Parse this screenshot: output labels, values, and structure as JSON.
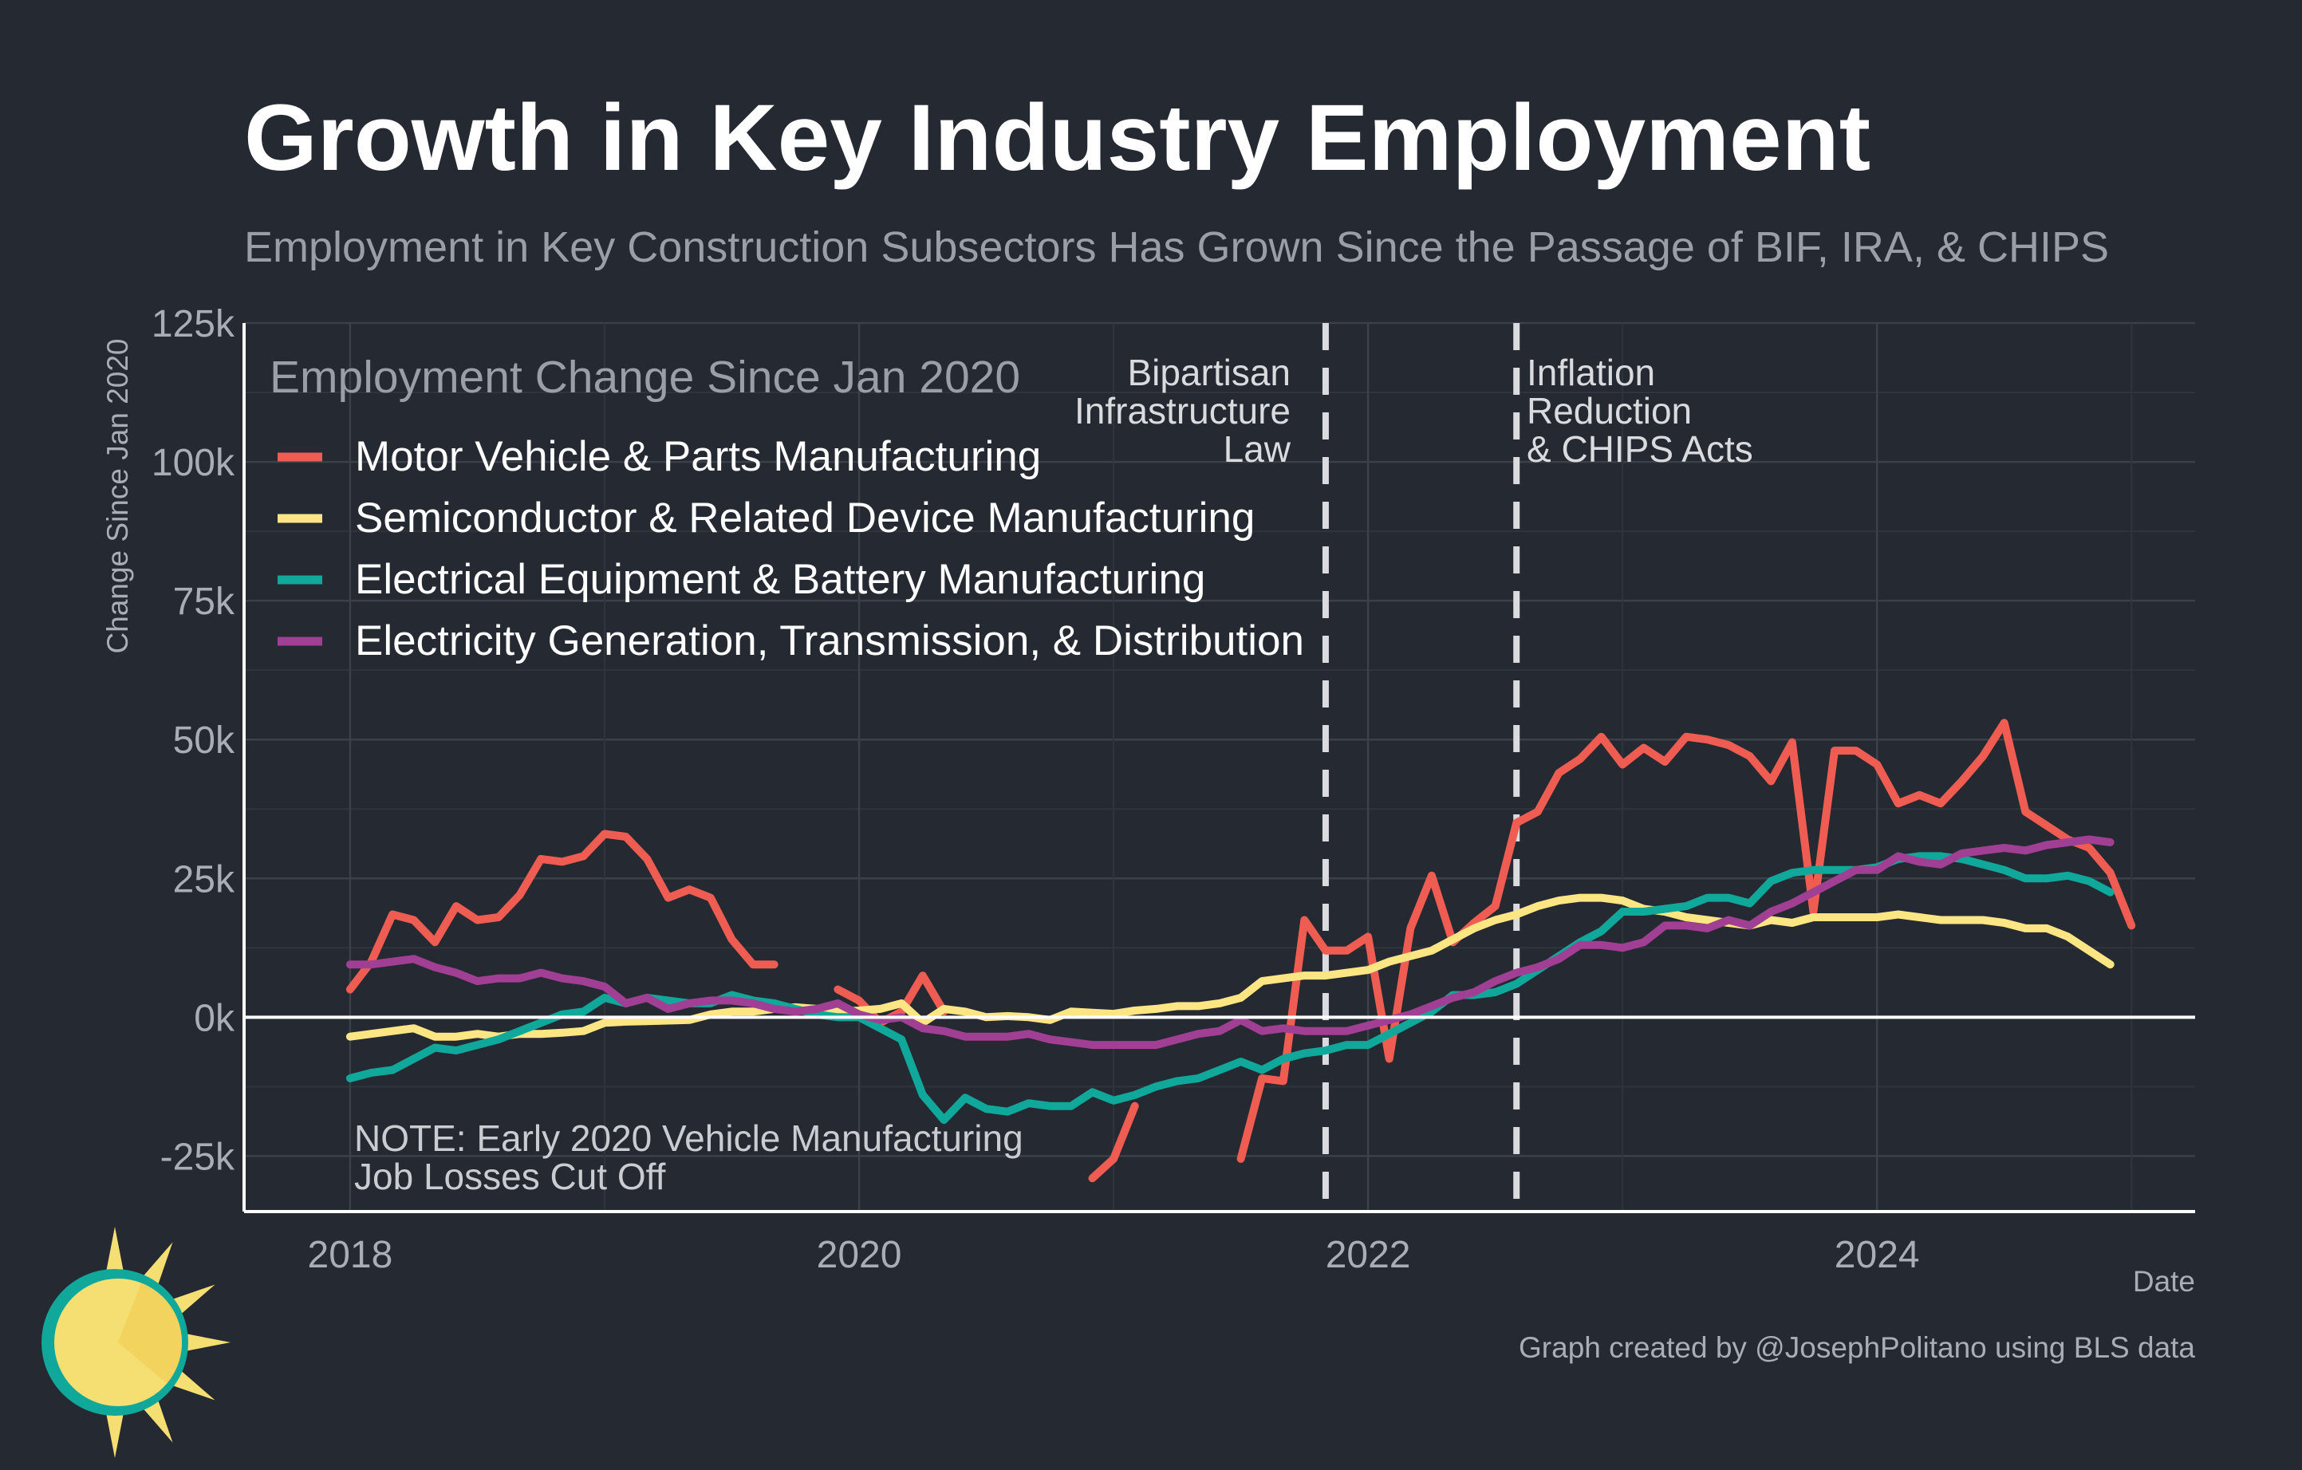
{
  "header": {
    "title": "Growth in Key Industry Employment",
    "subtitle": "Employment in Key Construction Subsectors Has Grown Since the Passage of BIF, IRA, & CHIPS"
  },
  "legend": {
    "title": "Employment Change Since Jan 2020"
  },
  "annotations": {
    "bif": [
      "Bipartisan",
      "Infrastructure",
      "Law"
    ],
    "ira": [
      "Inflation",
      "Reduction",
      "& CHIPS Acts"
    ],
    "note": [
      "NOTE: Early 2020 Vehicle Manufacturing",
      "Job Losses Cut Off"
    ]
  },
  "footer": {
    "credit": "Graph created by @JosephPolitano using BLS data"
  },
  "colors": {
    "background": "#252931",
    "grid": "#3b4049",
    "axis": "#ffffff",
    "vline": "#d9dbde",
    "logo_sun": "#f5de72",
    "logo_ring": "#0fa89a"
  },
  "logo_icon": "sun-icon",
  "chart_data": {
    "type": "line",
    "xlabel": "Date",
    "ylabel": "Change Since Jan 2020",
    "x_range": [
      "2017-08",
      "2025-04"
    ],
    "ylim": [
      -35000,
      125000
    ],
    "x_ticks": [
      {
        "date": "2018-01",
        "label": "2018"
      },
      {
        "date": "2020-01",
        "label": "2020"
      },
      {
        "date": "2022-01",
        "label": "2022"
      },
      {
        "date": "2024-01",
        "label": "2024"
      }
    ],
    "y_ticks": [
      {
        "value": -25000,
        "label": "-25k"
      },
      {
        "value": 0,
        "label": "0k"
      },
      {
        "value": 25000,
        "label": "25k"
      },
      {
        "value": 50000,
        "label": "50k"
      },
      {
        "value": 75000,
        "label": "75k"
      },
      {
        "value": 100000,
        "label": "100k"
      },
      {
        "value": 125000,
        "label": "125k"
      }
    ],
    "grid": true,
    "legend_position": "top-left",
    "vertical_lines": [
      {
        "date": "2021-11",
        "label": "Bipartisan Infrastructure Law"
      },
      {
        "date": "2022-08",
        "label": "Inflation Reduction & CHIPS Acts"
      }
    ],
    "series": [
      {
        "name": "Motor Vehicle & Parts Manufacturing",
        "color": "#ef5d52",
        "segments": [
          {
            "start": "2018-01",
            "values": [
              5000,
              10000,
              18500,
              17500,
              13500,
              20000,
              17500,
              18000,
              22000,
              28500,
              28000,
              29000,
              33000,
              32500,
              28500,
              21500,
              23000,
              21500,
              14000,
              9500,
              9500
            ]
          },
          {
            "start": "2019-12",
            "values": [
              5000,
              3000,
              -1000,
              1000,
              7500,
              1000
            ]
          },
          {
            "start": "2020-12",
            "values": [
              -29000,
              -25500,
              -16000
            ]
          },
          {
            "start": "2021-07",
            "values": [
              -25500,
              -11000,
              -11500,
              17500,
              12000,
              12000,
              14500,
              -7500,
              16000,
              25500,
              13500,
              17000,
              20000,
              35000,
              37000,
              44000,
              46500,
              50500,
              45500,
              48500,
              46000,
              50500,
              50000,
              49000,
              47000,
              42500,
              49500,
              19000,
              48000,
              48000,
              45500,
              38500,
              40000,
              38500,
              42500,
              47000,
              53000,
              37000,
              34500,
              32000,
              30500,
              26000,
              16500
            ]
          }
        ]
      },
      {
        "name": "Semiconductor & Related Device Manufacturing",
        "color": "#fce583",
        "segments": [
          {
            "start": "2018-01",
            "values": [
              -3500,
              -3000,
              -2500,
              -2000,
              -3500,
              -3500,
              -3000,
              -3500,
              -3000,
              -3000,
              -2800,
              -2500,
              -1000,
              -800,
              -700,
              -600,
              -500,
              500,
              1000,
              1000,
              1500,
              1800,
              1500,
              1000,
              1200,
              1500,
              2500,
              -1000,
              1500,
              1000,
              0,
              200,
              0,
              -500,
              1000,
              800,
              600,
              1200,
              1500,
              2000,
              2000,
              2500,
              3500,
              6500,
              7000,
              7500,
              7500,
              8000,
              8500,
              10000,
              11000,
              12000,
              14000,
              16000,
              17500,
              18500,
              20000,
              21000,
              21500,
              21500,
              21000,
              19500,
              19000,
              18000,
              17500,
              17000,
              16500,
              17500,
              17000,
              18000,
              18000,
              18000,
              18000,
              18500,
              18000,
              17500,
              17500,
              17500,
              17000,
              16000,
              16000,
              14500,
              12000,
              9500
            ]
          }
        ]
      },
      {
        "name": "Electrical Equipment & Battery Manufacturing",
        "color": "#0fa89a",
        "segments": [
          {
            "start": "2018-01",
            "values": [
              -11000,
              -10000,
              -9500,
              -7500,
              -5500,
              -6000,
              -5000,
              -4000,
              -2500,
              -1000,
              500,
              1000,
              3500,
              2500,
              3500,
              3000,
              2500,
              2500,
              4000,
              3000,
              2500,
              1500,
              500,
              0,
              0,
              -2000,
              -4000,
              -14000,
              -18500,
              -14500,
              -16500,
              -17000,
              -15500,
              -16000,
              -16000,
              -13500,
              -15000,
              -14000,
              -12500,
              -11500,
              -11000,
              -9500,
              -8000,
              -9500,
              -7500,
              -6500,
              -6000,
              -5000,
              -5000,
              -3000,
              -1000,
              1000,
              4000,
              4000,
              4500,
              6000,
              8500,
              11000,
              13500,
              15500,
              19000,
              19000,
              19500,
              20000,
              21500,
              21500,
              20500,
              24500,
              26000,
              26500,
              26500,
              26500,
              27000,
              28500,
              29000,
              29000,
              28500,
              27500,
              26500,
              25000,
              25000,
              25500,
              24500,
              22500
            ]
          }
        ]
      },
      {
        "name": "Electricity Generation, Transmission, & Distribution",
        "color": "#a03f93",
        "segments": [
          {
            "start": "2018-01",
            "values": [
              9500,
              9500,
              10000,
              10500,
              9000,
              8000,
              6500,
              7000,
              7000,
              8000,
              7000,
              6500,
              5500,
              2500,
              3500,
              1500,
              2500,
              3000,
              3000,
              2500,
              1500,
              1000,
              1500,
              2500,
              500,
              -500,
              0,
              -2000,
              -2500,
              -3500,
              -3500,
              -3500,
              -3000,
              -4000,
              -4500,
              -5000,
              -5000,
              -5000,
              -5000,
              -4000,
              -3000,
              -2500,
              -500,
              -2500,
              -2000,
              -2500,
              -2500,
              -2500,
              -1500,
              -500,
              500,
              2000,
              3500,
              4500,
              6500,
              8000,
              9000,
              10500,
              13000,
              13000,
              12500,
              13500,
              16500,
              16500,
              16000,
              17500,
              16500,
              19000,
              20500,
              22500,
              24500,
              26500,
              26500,
              29000,
              28000,
              27500,
              29500,
              30000,
              30500,
              30000,
              31000,
              31500,
              32000,
              31500
            ]
          }
        ]
      }
    ]
  }
}
